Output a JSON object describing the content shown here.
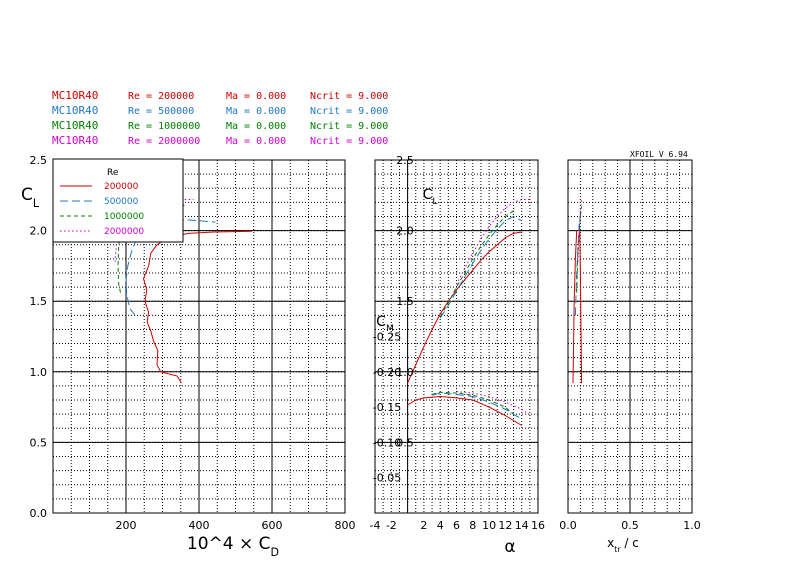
{
  "header_rows": [
    {
      "name": "MC10R40",
      "re": "Re = 200000",
      "ma": "Ma = 0.000",
      "ncrit": "Ncrit = 9.000",
      "color": "#d00000"
    },
    {
      "name": "MC10R40",
      "re": "Re = 500000",
      "ma": "Ma = 0.000",
      "ncrit": "Ncrit = 9.000",
      "color": "#1f77c4"
    },
    {
      "name": "MC10R40",
      "re": "Re = 1000000",
      "ma": "Ma = 0.000",
      "ncrit": "Ncrit = 9.000",
      "color": "#008000"
    },
    {
      "name": "MC10R40",
      "re": "Re = 2000000",
      "ma": "Ma = 0.000",
      "ncrit": "Ncrit = 9.000",
      "color": "#d000d0"
    }
  ],
  "version": "XFOIL V 6.94",
  "legend": {
    "title": "Re",
    "entries": [
      "200000",
      "500000",
      "1000000",
      "2000000"
    ],
    "colors": [
      "#d00000",
      "#1f77c4",
      "#008000",
      "#d000d0"
    ],
    "dashes": [
      "solid",
      "long-dash",
      "dash",
      "dot"
    ]
  },
  "chart_data": [
    {
      "type": "line",
      "title": "",
      "xlabel": "10^4 × C_D",
      "ylabel": "C_L",
      "xlim": [
        0,
        800
      ],
      "ylim": [
        0,
        2.5
      ],
      "x_ticks": [
        "200",
        "400",
        "600",
        "800"
      ],
      "y_ticks": [
        "0.0",
        "0.5",
        "1.0",
        "1.5",
        "2.0",
        "2.5"
      ],
      "grid": true,
      "series": [
        {
          "name": "200000",
          "points": [
            [
              352,
              0.92
            ],
            [
              340,
              0.97
            ],
            [
              295,
              1.0
            ],
            [
              285,
              1.05
            ],
            [
              287,
              1.15
            ],
            [
              275,
              1.22
            ],
            [
              268,
              1.29
            ],
            [
              258,
              1.35
            ],
            [
              262,
              1.42
            ],
            [
              252,
              1.5
            ],
            [
              257,
              1.58
            ],
            [
              248,
              1.66
            ],
            [
              262,
              1.75
            ],
            [
              268,
              1.84
            ],
            [
              285,
              1.9
            ],
            [
              315,
              1.95
            ],
            [
              370,
              1.98
            ],
            [
              440,
              1.99
            ],
            [
              545,
              1.995
            ]
          ]
        },
        {
          "name": "500000",
          "points": [
            [
              225,
              1.4
            ],
            [
              210,
              1.45
            ],
            [
              202,
              1.55
            ],
            [
              200,
              1.65
            ],
            [
              205,
              1.75
            ],
            [
              215,
              1.85
            ],
            [
              230,
              1.95
            ],
            [
              250,
              2.05
            ],
            [
              275,
              2.1
            ],
            [
              300,
              2.11
            ],
            [
              345,
              2.08
            ],
            [
              400,
              2.07
            ],
            [
              445,
              2.06
            ]
          ]
        },
        {
          "name": "1000000",
          "points": [
            [
              185,
              1.56
            ],
            [
              180,
              1.62
            ],
            [
              178,
              1.75
            ],
            [
              180,
              1.9
            ],
            [
              188,
              2.0
            ],
            [
              200,
              2.06
            ],
            [
              225,
              2.12
            ],
            [
              260,
              2.15
            ],
            [
              300,
              2.17
            ],
            [
              360,
              2.18
            ]
          ]
        },
        {
          "name": "2000000",
          "points": [
            [
              170,
              1.78
            ],
            [
              175,
              1.95
            ],
            [
              195,
              2.05
            ],
            [
              225,
              2.13
            ],
            [
              265,
              2.19
            ],
            [
              300,
              2.21
            ],
            [
              340,
              2.22
            ],
            [
              385,
              2.22
            ]
          ]
        }
      ]
    },
    {
      "type": "line",
      "title": "",
      "xlabel": "α",
      "ylabel": "C_L",
      "xlim": [
        -4,
        16
      ],
      "ylim": [
        0,
        2.5
      ],
      "x_ticks": [
        "-4",
        "-2",
        "2",
        "4",
        "6",
        "8",
        "10",
        "12",
        "14",
        "16"
      ],
      "y_ticks": [
        "0.5",
        "1.0",
        "1.5",
        "2.0",
        "2.5"
      ],
      "grid": true,
      "series": [
        {
          "name": "200000",
          "points": [
            [
              0,
              0.92
            ],
            [
              1,
              1.05
            ],
            [
              2,
              1.18
            ],
            [
              3,
              1.3
            ],
            [
              4,
              1.41
            ],
            [
              5,
              1.5
            ],
            [
              6,
              1.58
            ],
            [
              7,
              1.65
            ],
            [
              8,
              1.72
            ],
            [
              9,
              1.79
            ],
            [
              10,
              1.85
            ],
            [
              11,
              1.9
            ],
            [
              12,
              1.95
            ],
            [
              13,
              1.98
            ],
            [
              14,
              1.99
            ]
          ]
        },
        {
          "name": "500000",
          "points": [
            [
              4,
              1.38
            ],
            [
              5,
              1.47
            ],
            [
              6,
              1.57
            ],
            [
              7,
              1.67
            ],
            [
              8,
              1.77
            ],
            [
              9,
              1.86
            ],
            [
              10,
              1.94
            ],
            [
              11,
              2.01
            ],
            [
              12,
              2.07
            ],
            [
              13,
              2.1
            ],
            [
              14,
              2.07
            ]
          ]
        },
        {
          "name": "1000000",
          "points": [
            [
              4,
              1.39
            ],
            [
              5,
              1.49
            ],
            [
              6,
              1.6
            ],
            [
              7,
              1.7
            ],
            [
              8,
              1.8
            ],
            [
              9,
              1.89
            ],
            [
              10,
              1.97
            ],
            [
              11,
              2.04
            ],
            [
              12,
              2.1
            ],
            [
              13,
              2.14
            ]
          ]
        },
        {
          "name": "2000000",
          "points": [
            [
              6,
              1.62
            ],
            [
              7,
              1.73
            ],
            [
              8,
              1.84
            ],
            [
              9,
              1.94
            ],
            [
              10,
              2.03
            ],
            [
              11,
              2.1
            ],
            [
              12,
              2.16
            ],
            [
              13,
              2.2
            ],
            [
              14,
              2.22
            ],
            [
              15,
              2.22
            ]
          ]
        }
      ]
    },
    {
      "type": "line",
      "title": "",
      "xlabel": "",
      "ylabel": "C_M",
      "xlim": [
        -4,
        16
      ],
      "ylim": [
        -0.25,
        0
      ],
      "y_ticks": [
        "-0.25",
        "-0.20",
        "-0.15",
        "-0.10",
        "-0.05"
      ],
      "grid": true,
      "series": [
        {
          "name": "200000",
          "points": [
            [
              0,
              -0.153
            ],
            [
              1,
              -0.16
            ],
            [
              2,
              -0.163
            ],
            [
              4,
              -0.165
            ],
            [
              6,
              -0.163
            ],
            [
              8,
              -0.16
            ],
            [
              10,
              -0.15
            ],
            [
              12,
              -0.138
            ],
            [
              14,
              -0.124
            ]
          ]
        },
        {
          "name": "500000",
          "points": [
            [
              3,
              -0.167
            ],
            [
              4,
              -0.17
            ],
            [
              6,
              -0.168
            ],
            [
              8,
              -0.165
            ],
            [
              10,
              -0.157
            ],
            [
              12,
              -0.147
            ],
            [
              14,
              -0.133
            ]
          ]
        },
        {
          "name": "1000000",
          "points": [
            [
              3,
              -0.168
            ],
            [
              4,
              -0.171
            ],
            [
              6,
              -0.17
            ],
            [
              8,
              -0.167
            ],
            [
              10,
              -0.16
            ],
            [
              12,
              -0.15
            ],
            [
              13,
              -0.14
            ]
          ]
        },
        {
          "name": "2000000",
          "points": [
            [
              6,
              -0.172
            ],
            [
              8,
              -0.17
            ],
            [
              10,
              -0.165
            ],
            [
              12,
              -0.157
            ],
            [
              14,
              -0.147
            ],
            [
              15,
              -0.139
            ]
          ]
        }
      ]
    },
    {
      "type": "line",
      "title": "",
      "xlabel": "x_tr / c",
      "ylabel": "",
      "xlim": [
        0,
        1.0
      ],
      "ylim": [
        0,
        2.5
      ],
      "x_ticks": [
        "0.0",
        "0.5",
        "1.0"
      ],
      "grid": true,
      "series": [
        {
          "name": "200000 upper",
          "points": [
            [
              0.04,
              0.92
            ],
            [
              0.045,
              1.2
            ],
            [
              0.05,
              1.5
            ],
            [
              0.06,
              1.8
            ],
            [
              0.07,
              2.0
            ]
          ]
        },
        {
          "name": "200000 lower",
          "points": [
            [
              0.11,
              0.92
            ],
            [
              0.105,
              1.3
            ],
            [
              0.1,
              1.7
            ],
            [
              0.095,
              2.0
            ]
          ]
        },
        {
          "name": "500000",
          "points": [
            [
              0.06,
              1.4
            ],
            [
              0.07,
              1.7
            ],
            [
              0.09,
              2.05
            ],
            [
              0.1,
              2.11
            ]
          ]
        },
        {
          "name": "1000000",
          "points": [
            [
              0.07,
              1.56
            ],
            [
              0.08,
              1.85
            ],
            [
              0.1,
              2.1
            ],
            [
              0.11,
              2.17
            ]
          ]
        },
        {
          "name": "2000000",
          "points": [
            [
              0.08,
              1.78
            ],
            [
              0.09,
              2.0
            ],
            [
              0.1,
              2.15
            ],
            [
              0.11,
              2.22
            ]
          ]
        }
      ]
    }
  ]
}
